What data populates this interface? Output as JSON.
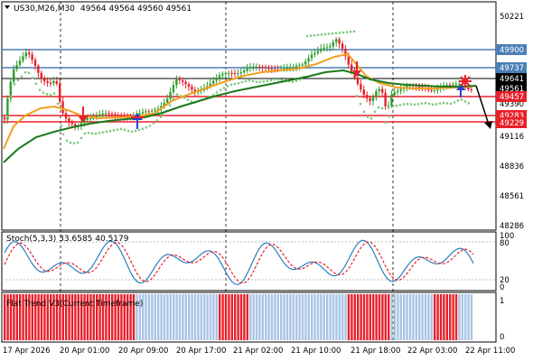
{
  "header": {
    "symbol": "US30,M26,M30",
    "ohlc": "49564 49564 49560 49561"
  },
  "price_axis": {
    "ticks": [
      "50221",
      "49900",
      "49737",
      "49641",
      "49561",
      "49457",
      "49390",
      "49283",
      "49229",
      "49116",
      "48836",
      "48561",
      "48286"
    ]
  },
  "price_labels": [
    {
      "value": "49900",
      "color": "#4a7fb5"
    },
    {
      "value": "49737",
      "color": "#4a7fb5"
    },
    {
      "value": "49641",
      "color": "#000000"
    },
    {
      "value": "49561",
      "color": "#000000"
    },
    {
      "value": "49457",
      "color": "#e8202a"
    },
    {
      "value": "49283",
      "color": "#e8202a"
    },
    {
      "value": "49229",
      "color": "#e8202a"
    }
  ],
  "stoch": {
    "label": "Stoch(5,3,3) 33.6585 40.5179",
    "ticks": [
      "100",
      "80",
      "20",
      "0"
    ]
  },
  "trend": {
    "label": "Flat Trend V3(Current Timeframe)",
    "ticks": [
      "1",
      "0"
    ]
  },
  "time_axis": {
    "labels": [
      "17 Apr 2026",
      "20 Apr 01:00",
      "20 Apr 09:00",
      "20 Apr 17:00",
      "21 Apr 02:00",
      "21 Apr 10:00",
      "21 Apr 18:00",
      "22 Apr 03:00",
      "22 Apr 11:00"
    ]
  },
  "colors": {
    "bull": "#2ca02c",
    "bear": "#e8202a",
    "ma_fast": "#f0a020",
    "ma_slow": "#1a7a1a",
    "psar": "#7ec87e",
    "hline_blue": "#4a7fb5",
    "hline_red": "#e8202a",
    "trend_up": "#a9c4e4",
    "trend_down": "#e8202a"
  }
}
